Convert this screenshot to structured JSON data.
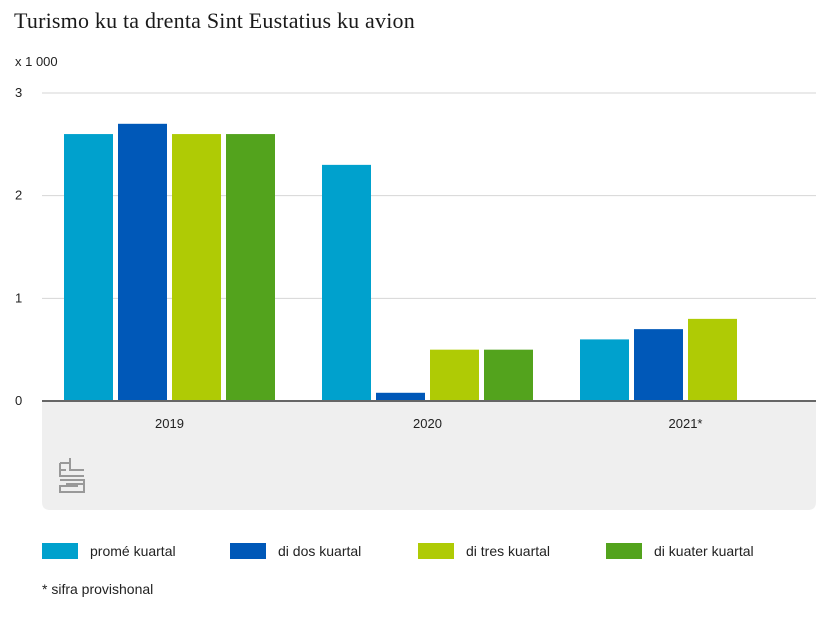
{
  "colors": {
    "series1": "#00a1cd",
    "series2": "#0058b8",
    "series3": "#afcb05",
    "series4": "#53a31d",
    "panel": "#efefef",
    "grid": "#d6d6d6",
    "axis": "#666666",
    "logo": "#999999"
  },
  "logo": {
    "icon": "cbs-logo-icon"
  },
  "chart_data": {
    "type": "bar",
    "title": "Turismo ku ta drenta Sint Eustatius ku avion",
    "unit_label": "x 1 000",
    "xlabel": "",
    "ylabel": "",
    "ylim": [
      0,
      3
    ],
    "yticks": [
      "0",
      "1",
      "2",
      "3"
    ],
    "categories": [
      "2019",
      "2020",
      "2021*"
    ],
    "series": [
      {
        "name": "promé kuartal",
        "values": [
          2.6,
          2.3,
          0.6
        ]
      },
      {
        "name": "di dos kuartal",
        "values": [
          2.7,
          0.08,
          0.7
        ]
      },
      {
        "name": "di tres kuartal",
        "values": [
          2.6,
          0.5,
          0.8
        ]
      },
      {
        "name": "di kuater kuartal",
        "values": [
          2.6,
          0.5,
          null
        ]
      }
    ],
    "legend_position": "bottom",
    "grid": true,
    "footnote": "* sifra provishonal"
  }
}
